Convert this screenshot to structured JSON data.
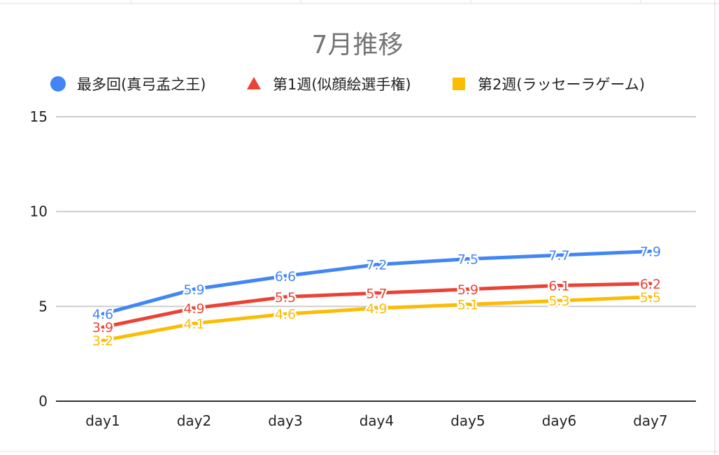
{
  "chart_data": {
    "type": "line",
    "title": "7月推移",
    "xlabel": "",
    "ylabel": "",
    "categories": [
      "day1",
      "day2",
      "day3",
      "day4",
      "day5",
      "day6",
      "day7"
    ],
    "ylim": [
      0,
      15
    ],
    "yticks": [
      "0",
      "5",
      "10",
      "15"
    ],
    "grid": true,
    "legend_position": "top",
    "data_labels": true,
    "series": [
      {
        "name": "最多回(真弓孟之王)",
        "color": "#4285f4",
        "marker": "circle",
        "values": [
          4.6,
          5.9,
          6.6,
          7.2,
          7.5,
          7.7,
          7.9
        ],
        "labels": [
          "4.6",
          "5.9",
          "6.6",
          "7.2",
          "7.5",
          "7.7",
          "7.9"
        ]
      },
      {
        "name": "第1週(似顔絵選手権)",
        "color": "#ea4335",
        "marker": "triangle",
        "values": [
          3.9,
          4.9,
          5.5,
          5.7,
          5.9,
          6.1,
          6.2
        ],
        "labels": [
          "3.9",
          "4.9",
          "5.5",
          "5.7",
          "5.9",
          "6.1",
          "6.2"
        ]
      },
      {
        "name": "第2週(ラッセーラゲーム)",
        "color": "#fbbc04",
        "marker": "square",
        "values": [
          3.2,
          4.1,
          4.6,
          4.9,
          5.1,
          5.3,
          5.5
        ],
        "labels": [
          "3.2",
          "4.1",
          "4.6",
          "4.9",
          "5.1",
          "5.3",
          "5.5"
        ]
      }
    ]
  }
}
